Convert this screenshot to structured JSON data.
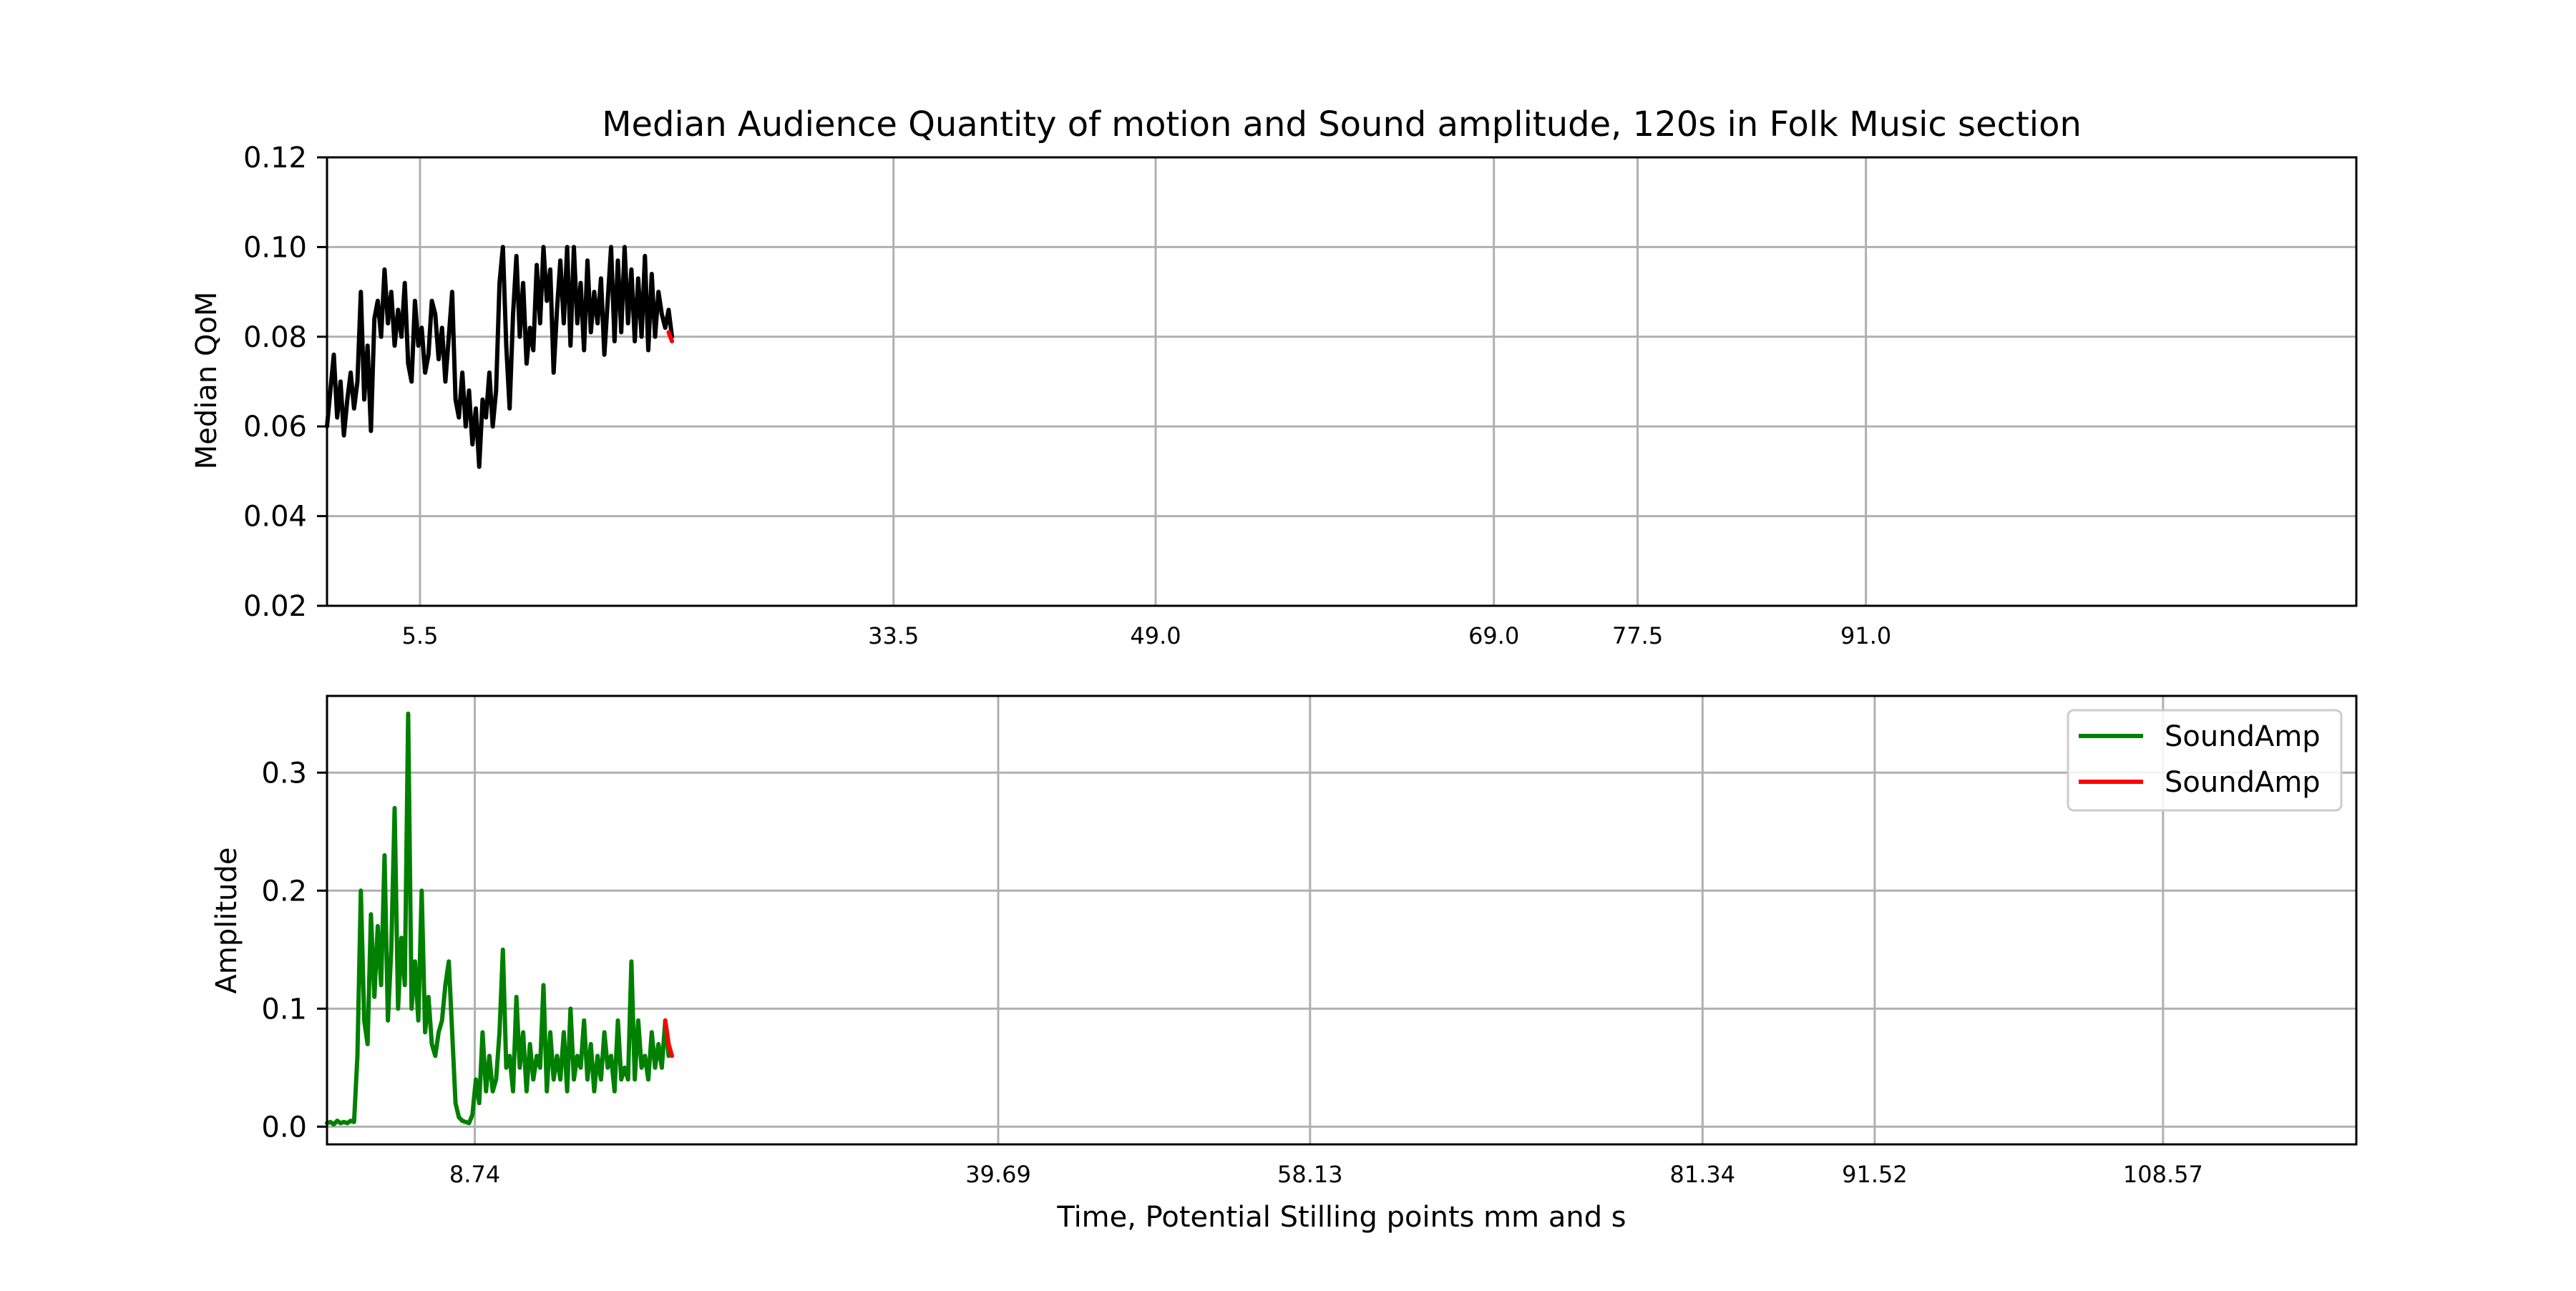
{
  "chart_data": [
    {
      "type": "line",
      "title": "Median Audience Quantity of motion and Sound amplitude, 120s in Folk Music section",
      "xlabel": "",
      "ylabel": "Median QoM",
      "xlim": [
        0,
        120
      ],
      "ylim": [
        0.02,
        0.12
      ],
      "yticks": [
        0.02,
        0.04,
        0.06,
        0.08,
        0.1,
        0.12
      ],
      "ytick_labels": [
        "0.02",
        "0.04",
        "0.06",
        "0.08",
        "0.10",
        "0.12"
      ],
      "xticks": [
        5.5,
        33.5,
        49.0,
        69.0,
        77.5,
        91.0
      ],
      "xtick_labels": [
        "5.5",
        "33.5",
        "49.0",
        "69.0",
        "77.5",
        "91.0"
      ],
      "grid": true,
      "series": [
        {
          "color": "#000000",
          "x": [
            0.0,
            0.2,
            0.4,
            0.6,
            0.8,
            1.0,
            1.2,
            1.4,
            1.6,
            1.8,
            2.0,
            2.2,
            2.4,
            2.6,
            2.8,
            3.0,
            3.2,
            3.4,
            3.6,
            3.8,
            4.0,
            4.2,
            4.4,
            4.6,
            4.8,
            5.0,
            5.2,
            5.4,
            5.6,
            5.8,
            6.0,
            6.2,
            6.4,
            6.6,
            6.8,
            7.0,
            7.2,
            7.4,
            7.6,
            7.8,
            8.0,
            8.2,
            8.4,
            8.6,
            8.8,
            9.0,
            9.2,
            9.4,
            9.6,
            9.8,
            10.0,
            10.2,
            10.4,
            10.6,
            10.8,
            11.0,
            11.2,
            11.4,
            11.6,
            11.8,
            12.0,
            12.2,
            12.4,
            12.6,
            12.8,
            13.0,
            13.2,
            13.4,
            13.6,
            13.8,
            14.0,
            14.2,
            14.4,
            14.6,
            14.8,
            15.0,
            15.2,
            15.4,
            15.6,
            15.8,
            16.0,
            16.2,
            16.4,
            16.6,
            16.8,
            17.0,
            17.2,
            17.4,
            17.6,
            17.8,
            18.0,
            18.2,
            18.4,
            18.6,
            18.8,
            19.0,
            19.2,
            19.4,
            19.6,
            19.8,
            20.0,
            20.2,
            20.4
          ],
          "values": [
            0.06,
            0.068,
            0.076,
            0.062,
            0.07,
            0.058,
            0.066,
            0.072,
            0.064,
            0.07,
            0.09,
            0.066,
            0.078,
            0.059,
            0.084,
            0.088,
            0.08,
            0.095,
            0.083,
            0.09,
            0.078,
            0.086,
            0.08,
            0.092,
            0.074,
            0.07,
            0.088,
            0.078,
            0.082,
            0.072,
            0.076,
            0.088,
            0.085,
            0.075,
            0.082,
            0.07,
            0.08,
            0.09,
            0.066,
            0.062,
            0.072,
            0.06,
            0.068,
            0.056,
            0.064,
            0.051,
            0.066,
            0.062,
            0.072,
            0.06,
            0.068,
            0.092,
            0.1,
            0.078,
            0.064,
            0.085,
            0.098,
            0.08,
            0.092,
            0.074,
            0.082,
            0.077,
            0.096,
            0.083,
            0.1,
            0.088,
            0.095,
            0.072,
            0.086,
            0.097,
            0.083,
            0.1,
            0.078,
            0.1,
            0.083,
            0.092,
            0.077,
            0.097,
            0.081,
            0.09,
            0.083,
            0.093,
            0.076,
            0.088,
            0.1,
            0.079,
            0.097,
            0.081,
            0.1,
            0.083,
            0.095,
            0.079,
            0.093,
            0.08,
            0.098,
            0.077,
            0.094,
            0.08,
            0.09,
            0.085,
            0.082,
            0.086,
            0.08
          ]
        },
        {
          "color": "#ff0000",
          "x": [
            20.2,
            20.4
          ],
          "values": [
            0.081,
            0.079
          ]
        }
      ]
    },
    {
      "type": "line",
      "title": "",
      "xlabel": "Time, Potential Stilling points mm and s",
      "ylabel": "Amplitude",
      "xlim": [
        0,
        120
      ],
      "ylim": [
        -0.015,
        0.365
      ],
      "yticks": [
        0.0,
        0.1,
        0.2,
        0.3
      ],
      "ytick_labels": [
        "0.0",
        "0.1",
        "0.2",
        "0.3"
      ],
      "xticks": [
        8.74,
        39.69,
        58.13,
        81.34,
        91.52,
        108.57
      ],
      "xtick_labels": [
        "8.74",
        "39.69",
        "58.13",
        "81.34",
        "91.52",
        "108.57"
      ],
      "grid": true,
      "legend": {
        "placement": "top-right",
        "entries": [
          "SoundAmp",
          "SoundAmp"
        ]
      },
      "series": [
        {
          "name": "SoundAmp",
          "color": "#008000",
          "x": [
            0.0,
            0.2,
            0.4,
            0.6,
            0.8,
            1.0,
            1.2,
            1.4,
            1.6,
            1.8,
            2.0,
            2.2,
            2.4,
            2.6,
            2.8,
            3.0,
            3.2,
            3.4,
            3.6,
            3.8,
            4.0,
            4.2,
            4.4,
            4.6,
            4.8,
            5.0,
            5.2,
            5.4,
            5.6,
            5.8,
            6.0,
            6.2,
            6.4,
            6.6,
            6.8,
            7.0,
            7.2,
            7.4,
            7.6,
            7.8,
            8.0,
            8.2,
            8.4,
            8.6,
            8.8,
            9.0,
            9.2,
            9.4,
            9.6,
            9.8,
            10.0,
            10.2,
            10.4,
            10.6,
            10.8,
            11.0,
            11.2,
            11.4,
            11.6,
            11.8,
            12.0,
            12.2,
            12.4,
            12.6,
            12.8,
            13.0,
            13.2,
            13.4,
            13.6,
            13.8,
            14.0,
            14.2,
            14.4,
            14.6,
            14.8,
            15.0,
            15.2,
            15.4,
            15.6,
            15.8,
            16.0,
            16.2,
            16.4,
            16.6,
            16.8,
            17.0,
            17.2,
            17.4,
            17.6,
            17.8,
            18.0,
            18.2,
            18.4,
            18.6,
            18.8,
            19.0,
            19.2,
            19.4,
            19.6,
            19.8,
            20.0,
            20.2
          ],
          "values": [
            0.003,
            0.004,
            0.002,
            0.005,
            0.003,
            0.004,
            0.003,
            0.005,
            0.004,
            0.06,
            0.2,
            0.09,
            0.07,
            0.18,
            0.11,
            0.17,
            0.12,
            0.23,
            0.09,
            0.15,
            0.27,
            0.1,
            0.16,
            0.12,
            0.35,
            0.1,
            0.14,
            0.09,
            0.2,
            0.08,
            0.11,
            0.07,
            0.06,
            0.08,
            0.09,
            0.12,
            0.14,
            0.08,
            0.02,
            0.008,
            0.005,
            0.004,
            0.003,
            0.01,
            0.04,
            0.02,
            0.08,
            0.03,
            0.06,
            0.03,
            0.04,
            0.08,
            0.15,
            0.05,
            0.06,
            0.03,
            0.11,
            0.05,
            0.08,
            0.03,
            0.07,
            0.04,
            0.06,
            0.05,
            0.12,
            0.03,
            0.08,
            0.04,
            0.06,
            0.04,
            0.08,
            0.03,
            0.1,
            0.04,
            0.06,
            0.05,
            0.09,
            0.04,
            0.07,
            0.03,
            0.06,
            0.04,
            0.08,
            0.05,
            0.06,
            0.03,
            0.09,
            0.04,
            0.05,
            0.04,
            0.14,
            0.04,
            0.09,
            0.05,
            0.06,
            0.04,
            0.08,
            0.05,
            0.07,
            0.05,
            0.09,
            0.06
          ]
        },
        {
          "name": "SoundAmp",
          "color": "#ff0000",
          "x": [
            20.0,
            20.2,
            20.4
          ],
          "values": [
            0.09,
            0.07,
            0.06
          ]
        }
      ]
    }
  ]
}
